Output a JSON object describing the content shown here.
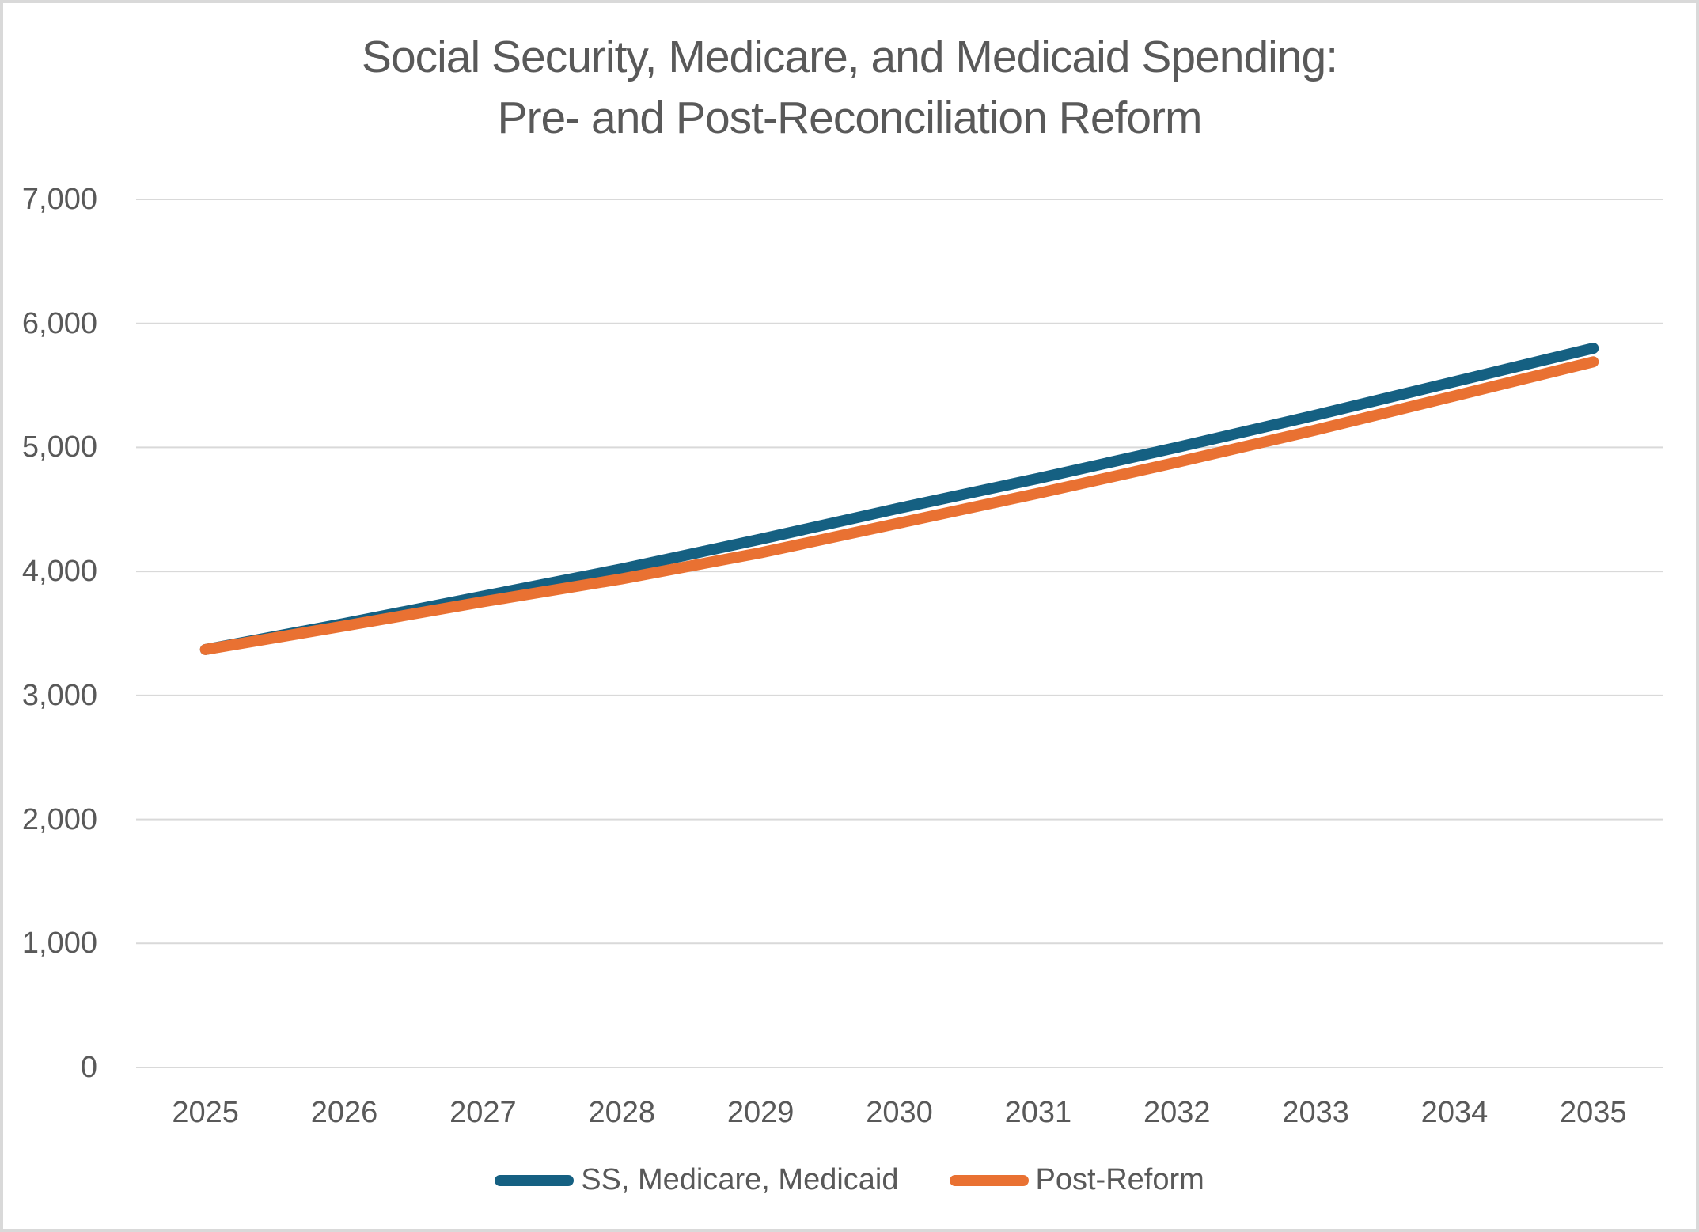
{
  "chart_data": {
    "type": "line",
    "title_line1": "Social Security, Medicare, and Medicaid Spending:",
    "title_line2": "Pre- and Post-Reconciliation Reform",
    "categories": [
      "2025",
      "2026",
      "2027",
      "2028",
      "2029",
      "2030",
      "2031",
      "2032",
      "2033",
      "2034",
      "2035"
    ],
    "series": [
      {
        "name": "SS, Medicare, Medicaid",
        "color": "#156082",
        "values": [
          3370,
          3580,
          3800,
          4020,
          4260,
          4510,
          4750,
          5000,
          5260,
          5530,
          5800
        ]
      },
      {
        "name": "Post-Reform",
        "color": "#E97132",
        "values": [
          3370,
          3560,
          3755,
          3940,
          4150,
          4390,
          4630,
          4880,
          5140,
          5415,
          5690
        ]
      }
    ],
    "xlabel": "",
    "ylabel": "",
    "ylim": [
      0,
      7000
    ],
    "y_tick_values": [
      0,
      1000,
      2000,
      3000,
      4000,
      5000,
      6000,
      7000
    ],
    "y_tick_labels": [
      "0",
      "1,000",
      "2,000",
      "3,000",
      "4,000",
      "5,000",
      "6,000",
      "7,000"
    ],
    "grid": true,
    "legend_position": "bottom"
  },
  "colors": {
    "text": "#595959",
    "gridline": "#D9D9D9",
    "frame_border": "#D9D9D9",
    "background": "#FFFFFF"
  }
}
